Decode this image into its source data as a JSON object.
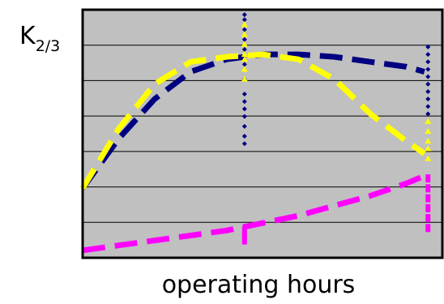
{
  "chart_data": {
    "type": "line",
    "title": "",
    "ylabel_main": "K",
    "ylabel_sub": "2/3",
    "xlabel": "operating hours",
    "xlim": [
      0,
      100
    ],
    "ylim": [
      0,
      100
    ],
    "grid": true,
    "legend": "none",
    "colors": {
      "plot_bg": "#c0c0c0",
      "navy": "#000080",
      "yellow": "#ffff00",
      "magenta": "#ff00ff",
      "grid": "#000000"
    },
    "series": [
      {
        "color": "navy",
        "style": "dashed",
        "x": [
          0,
          10,
          20,
          30,
          40,
          50,
          60,
          70,
          80,
          90,
          95
        ],
        "y": [
          28,
          48,
          64,
          75,
          80,
          82,
          82,
          81,
          79,
          77,
          75
        ]
      },
      {
        "color": "yellow",
        "style": "dashed",
        "x": [
          0,
          10,
          20,
          30,
          40,
          50,
          60,
          70,
          80,
          90,
          95
        ],
        "y": [
          28,
          52,
          70,
          79,
          81,
          82,
          80,
          72,
          58,
          47,
          42
        ]
      },
      {
        "color": "magenta",
        "style": "dashed",
        "x": [
          0,
          10,
          20,
          30,
          40,
          50,
          60,
          70,
          80,
          90,
          95
        ],
        "y": [
          3,
          5,
          7,
          9,
          11,
          14,
          17,
          21,
          25,
          30,
          33
        ]
      }
    ],
    "scatter_columns": [
      {
        "x": 45,
        "color": "navy",
        "values": [
          98,
          96,
          92,
          88,
          84,
          78,
          72,
          66,
          63,
          60,
          57,
          53,
          49,
          46
        ]
      },
      {
        "x": 45,
        "color": "yellow",
        "values": [
          94,
          90,
          86,
          82,
          80,
          76,
          72
        ]
      },
      {
        "x": 45,
        "color": "magenta",
        "values": [
          11,
          9,
          7
        ]
      },
      {
        "x": 96,
        "color": "navy",
        "values": [
          85,
          82,
          79,
          76,
          73,
          70,
          67,
          64,
          61,
          58
        ]
      },
      {
        "x": 96,
        "color": "yellow",
        "values": [
          55,
          51,
          47,
          44,
          40
        ]
      },
      {
        "x": 96,
        "color": "magenta",
        "values": [
          32,
          28,
          24,
          20,
          16,
          12
        ]
      }
    ]
  }
}
